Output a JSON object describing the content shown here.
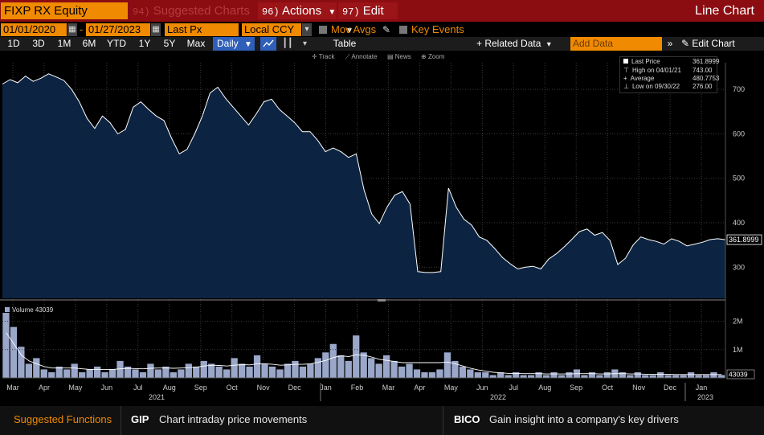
{
  "title_bar": {
    "ticker": "FIXP RX Equity",
    "suggested_num": "94)",
    "suggested_label": "Suggested Charts",
    "actions_num": "96)",
    "actions_label": "Actions",
    "edit_num": "97)",
    "edit_label": "Edit",
    "window_title": "Line Chart"
  },
  "controls": {
    "start_date": "01/01/2020",
    "date_dash": "-",
    "end_date": "01/27/2023",
    "price_field": "Last Px",
    "currency": "Local CCY",
    "mov_avgs": "Mov Avgs",
    "key_events": "Key Events",
    "table": "Table"
  },
  "periods": [
    "1D",
    "3D",
    "1M",
    "6M",
    "YTD",
    "1Y",
    "5Y",
    "Max"
  ],
  "frequency": "Daily",
  "toolbar": {
    "related_data": "+ Related Data",
    "add_data_placeholder": "Add Data",
    "edit_chart": "Edit Chart",
    "track": "Track",
    "annotate": "Annotate",
    "news": "News",
    "zoom": "Zoom"
  },
  "legend": {
    "last_price_label": "Last Price",
    "last_price_value": "361.8999",
    "high_label": "High on 04/01/21",
    "high_value": "743.00",
    "average_label": "Average",
    "average_value": "480.7753",
    "low_label": "Low on 09/30/22",
    "low_value": "276.00"
  },
  "volume_label": "Volume 43039",
  "footer": {
    "suggested_functions": "Suggested Functions",
    "gip_code": "GIP",
    "gip_desc": "Chart intraday price movements",
    "bico_code": "BICO",
    "bico_desc": "Gain insight into a company's key drivers"
  },
  "colors": {
    "orange": "#f08a00",
    "title_red": "#8b0d12",
    "area_fill": "#0c2442",
    "line": "#ffffff",
    "volume_bar": "#9aa7c9"
  },
  "chart_data": {
    "type": "area",
    "title": "",
    "price": {
      "x_range": [
        "2020-01-01",
        "2023-01-27"
      ],
      "ylim": [
        230,
        760
      ],
      "yticks": [
        300,
        400,
        500,
        600,
        700
      ],
      "last_value_label": "361.8999",
      "months_2021": [
        "Mar",
        "Apr",
        "May",
        "Jun",
        "Jul",
        "Aug",
        "Sep",
        "Oct",
        "Nov",
        "Dec",
        "Jan",
        "Feb",
        "Mar",
        "Apr",
        "May",
        "Jun",
        "Jul",
        "Aug",
        "Sep",
        "Oct",
        "Nov",
        "Dec",
        "Jan"
      ],
      "year_labels": [
        "2021",
        "2022",
        "2023"
      ],
      "points": [
        [
          0,
          712
        ],
        [
          1,
          722
        ],
        [
          2,
          715
        ],
        [
          3,
          730
        ],
        [
          4,
          718
        ],
        [
          5,
          725
        ],
        [
          6,
          735
        ],
        [
          7,
          728
        ],
        [
          8,
          720
        ],
        [
          9,
          700
        ],
        [
          10,
          672
        ],
        [
          11,
          635
        ],
        [
          12,
          612
        ],
        [
          13,
          640
        ],
        [
          14,
          625
        ],
        [
          15,
          600
        ],
        [
          16,
          610
        ],
        [
          17,
          660
        ],
        [
          18,
          672
        ],
        [
          19,
          655
        ],
        [
          20,
          640
        ],
        [
          21,
          630
        ],
        [
          22,
          590
        ],
        [
          23,
          555
        ],
        [
          24,
          565
        ],
        [
          25,
          600
        ],
        [
          26,
          640
        ],
        [
          27,
          692
        ],
        [
          28,
          705
        ],
        [
          29,
          680
        ],
        [
          30,
          660
        ],
        [
          31,
          640
        ],
        [
          32,
          620
        ],
        [
          33,
          645
        ],
        [
          34,
          672
        ],
        [
          35,
          678
        ],
        [
          36,
          655
        ],
        [
          37,
          640
        ],
        [
          38,
          625
        ],
        [
          39,
          605
        ],
        [
          40,
          605
        ],
        [
          41,
          585
        ],
        [
          42,
          560
        ],
        [
          43,
          568
        ],
        [
          44,
          560
        ],
        [
          45,
          547
        ],
        [
          46,
          555
        ],
        [
          47,
          475
        ],
        [
          48,
          420
        ],
        [
          49,
          398
        ],
        [
          50,
          435
        ],
        [
          51,
          462
        ],
        [
          52,
          470
        ],
        [
          53,
          442
        ],
        [
          54,
          290
        ],
        [
          55,
          288
        ],
        [
          56,
          288
        ],
        [
          57,
          290
        ],
        [
          58,
          478
        ],
        [
          59,
          435
        ],
        [
          60,
          408
        ],
        [
          61,
          395
        ],
        [
          62,
          368
        ],
        [
          63,
          360
        ],
        [
          64,
          342
        ],
        [
          65,
          322
        ],
        [
          66,
          308
        ],
        [
          67,
          296
        ],
        [
          68,
          300
        ],
        [
          69,
          302
        ],
        [
          70,
          296
        ],
        [
          71,
          318
        ],
        [
          72,
          330
        ],
        [
          73,
          345
        ],
        [
          74,
          362
        ],
        [
          75,
          380
        ],
        [
          76,
          386
        ],
        [
          77,
          372
        ],
        [
          78,
          378
        ],
        [
          79,
          360
        ],
        [
          80,
          306
        ],
        [
          81,
          320
        ],
        [
          82,
          350
        ],
        [
          83,
          368
        ],
        [
          84,
          362
        ],
        [
          85,
          358
        ],
        [
          86,
          352
        ],
        [
          87,
          364
        ],
        [
          88,
          358
        ],
        [
          89,
          348
        ],
        [
          90,
          352
        ],
        [
          91,
          356
        ],
        [
          92,
          362
        ],
        [
          93,
          364
        ],
        [
          94,
          361.9
        ]
      ]
    },
    "volume": {
      "yticks": [
        "1M",
        "2M"
      ],
      "last_value_label": "43039",
      "bars": [
        2.3,
        1.8,
        1.1,
        0.5,
        0.7,
        0.3,
        0.2,
        0.4,
        0.3,
        0.5,
        0.2,
        0.3,
        0.4,
        0.2,
        0.3,
        0.6,
        0.4,
        0.3,
        0.2,
        0.5,
        0.3,
        0.4,
        0.2,
        0.3,
        0.5,
        0.4,
        0.6,
        0.5,
        0.4,
        0.3,
        0.7,
        0.5,
        0.4,
        0.8,
        0.5,
        0.4,
        0.3,
        0.5,
        0.6,
        0.4,
        0.5,
        0.7,
        0.9,
        1.2,
        0.8,
        0.6,
        1.5,
        0.9,
        0.7,
        0.5,
        0.8,
        0.6,
        0.4,
        0.5,
        0.3,
        0.2,
        0.2,
        0.3,
        0.9,
        0.6,
        0.4,
        0.3,
        0.2,
        0.2,
        0.1,
        0.2,
        0.1,
        0.2,
        0.1,
        0.1,
        0.2,
        0.1,
        0.2,
        0.1,
        0.2,
        0.3,
        0.1,
        0.2,
        0.1,
        0.2,
        0.3,
        0.2,
        0.1,
        0.2,
        0.1,
        0.1,
        0.2,
        0.1,
        0.1,
        0.1,
        0.2,
        0.1,
        0.1,
        0.2,
        0.1
      ],
      "avg": [
        1.6,
        1.2,
        0.8,
        0.6,
        0.5,
        0.4,
        0.35,
        0.35,
        0.35,
        0.35,
        0.32,
        0.3,
        0.3,
        0.3,
        0.3,
        0.32,
        0.34,
        0.33,
        0.32,
        0.34,
        0.35,
        0.35,
        0.34,
        0.35,
        0.36,
        0.38,
        0.42,
        0.45,
        0.44,
        0.42,
        0.45,
        0.47,
        0.46,
        0.5,
        0.5,
        0.48,
        0.45,
        0.46,
        0.48,
        0.48,
        0.5,
        0.55,
        0.62,
        0.72,
        0.78,
        0.75,
        0.82,
        0.8,
        0.74,
        0.66,
        0.62,
        0.58,
        0.54,
        0.54,
        0.54,
        0.54,
        0.54,
        0.54,
        0.56,
        0.5,
        0.42,
        0.34,
        0.28,
        0.24,
        0.2,
        0.18,
        0.16,
        0.16,
        0.15,
        0.15,
        0.15,
        0.14,
        0.14,
        0.14,
        0.14,
        0.15,
        0.15,
        0.15,
        0.14,
        0.14,
        0.15,
        0.15,
        0.14,
        0.14,
        0.13,
        0.13,
        0.13,
        0.13,
        0.12,
        0.12,
        0.12,
        0.12,
        0.12,
        0.12,
        0.12
      ]
    }
  }
}
